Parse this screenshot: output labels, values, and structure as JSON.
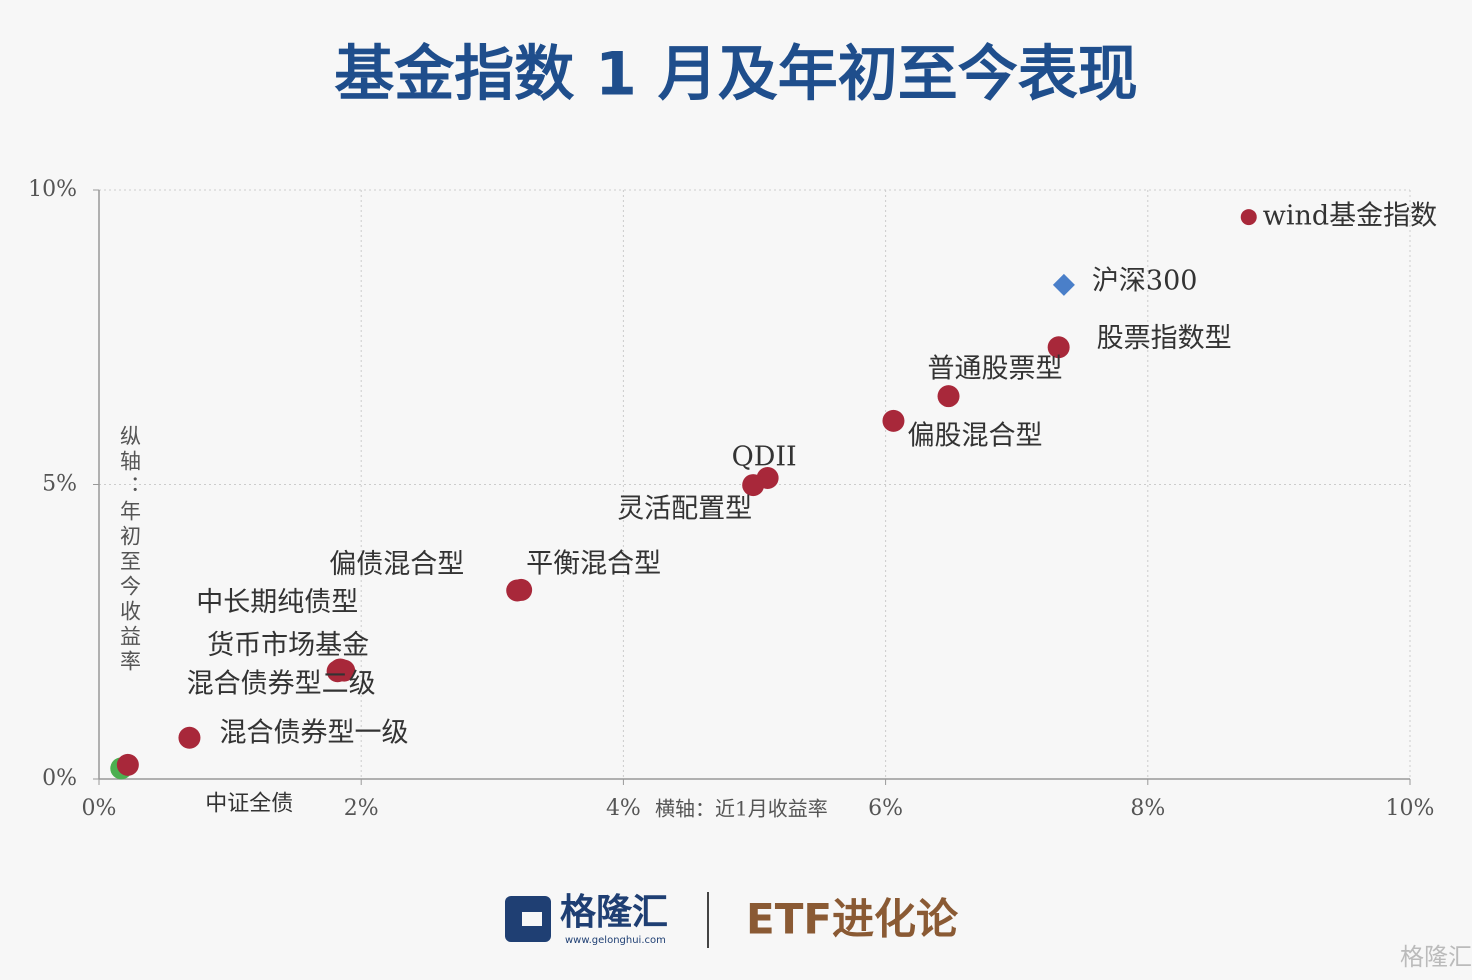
{
  "chart_data": {
    "type": "scatter",
    "title": "基金指数 1 月及年初至今表现",
    "x_axis_label": "横轴：近1月收益率",
    "y_axis_label": "纵轴：年初至今收益率",
    "xlim": [
      0,
      10
    ],
    "ylim": [
      0,
      10
    ],
    "xticks": [
      {
        "value": 0,
        "label": "0%"
      },
      {
        "value": 2,
        "label": "2%"
      },
      {
        "value": 4,
        "label": "4%"
      },
      {
        "value": 6,
        "label": "6%"
      },
      {
        "value": 8,
        "label": "8%"
      },
      {
        "value": 10,
        "label": "10%"
      }
    ],
    "yticks": [
      {
        "value": 0,
        "label": "0%"
      },
      {
        "value": 5,
        "label": "5%"
      },
      {
        "value": 10,
        "label": "10%"
      }
    ],
    "grid": true,
    "labels": [
      "wind基金指数",
      "沪深300",
      "股票指数型",
      "普通股票型",
      "偏股混合型",
      "QDII",
      "灵活配置型",
      "平衡混合型",
      "偏债混合型",
      "中长期纯债型",
      "货币市场基金",
      "混合债券型二级",
      "混合债券型一级",
      "中证全债",
      null
    ],
    "x": [
      8.77,
      7.36,
      7.32,
      6.48,
      6.06,
      5.1,
      4.99,
      3.22,
      3.19,
      1.84,
      1.87,
      1.82,
      0.69,
      0.17,
      0.22
    ],
    "y": [
      9.54,
      8.39,
      7.33,
      6.5,
      6.08,
      5.11,
      4.99,
      3.21,
      3.2,
      1.86,
      1.84,
      1.83,
      0.7,
      0.18,
      0.24
    ],
    "colors": [
      "#a8283a",
      "#4a7fc9",
      "#a8283a",
      "#a8283a",
      "#a8283a",
      "#a8283a",
      "#a8283a",
      "#a8283a",
      "#a8283a",
      "#a8283a",
      "#a8283a",
      "#a8283a",
      "#a8283a",
      "#4caf50",
      "#a8283a"
    ]
  },
  "footer": {
    "brand": "格隆汇",
    "url": "www.gelonghui.com",
    "column": "ETF进化论",
    "watermark": "格隆汇"
  }
}
